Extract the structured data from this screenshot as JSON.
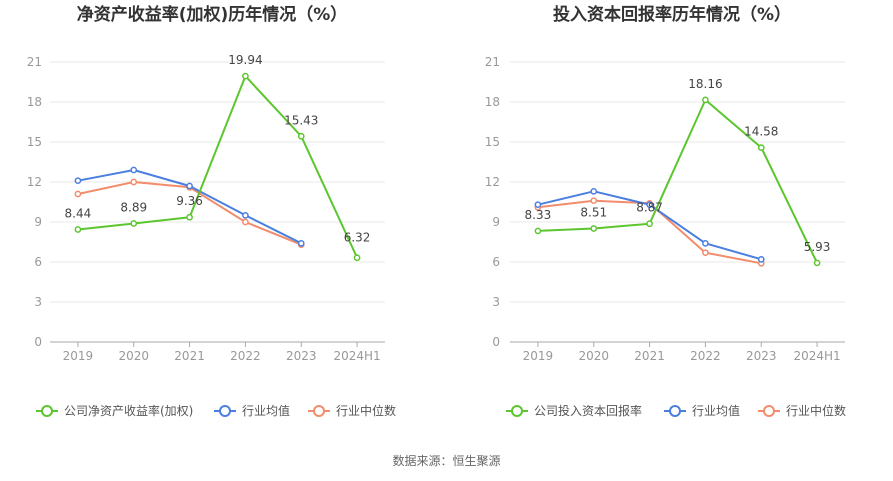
{
  "chart_data": [
    {
      "type": "line",
      "title": "净资产收益率(加权)历年情况（%）",
      "categories": [
        "2019",
        "2020",
        "2021",
        "2022",
        "2023",
        "2024H1"
      ],
      "yticks": [
        "0",
        "3",
        "6",
        "9",
        "12",
        "15",
        "18",
        "21"
      ],
      "ylim": [
        0,
        21
      ],
      "grid": true,
      "legend_position": "bottom",
      "series": [
        {
          "name": "公司净资产收益率(加权)",
          "color": "#5cc62f",
          "values": [
            8.44,
            8.89,
            9.36,
            19.94,
            15.43,
            6.32
          ],
          "labels": [
            "8.44",
            "8.89",
            "9.36",
            "19.94",
            "15.43",
            "6.32"
          ]
        },
        {
          "name": "行业均值",
          "color": "#4a7fe0",
          "values": [
            12.1,
            12.9,
            11.7,
            9.5,
            7.4,
            null
          ]
        },
        {
          "name": "行业中位数",
          "color": "#f28c6b",
          "values": [
            11.1,
            12.0,
            11.6,
            9.0,
            7.3,
            null
          ]
        }
      ]
    },
    {
      "type": "line",
      "title": "投入资本回报率历年情况（%）",
      "categories": [
        "2019",
        "2020",
        "2021",
        "2022",
        "2023",
        "2024H1"
      ],
      "yticks": [
        "0",
        "3",
        "6",
        "9",
        "12",
        "15",
        "18",
        "21"
      ],
      "ylim": [
        0,
        21
      ],
      "grid": true,
      "legend_position": "bottom",
      "series": [
        {
          "name": "公司投入资本回报率",
          "color": "#5cc62f",
          "values": [
            8.33,
            8.51,
            8.87,
            18.16,
            14.58,
            5.93
          ],
          "labels": [
            "8.33",
            "8.51",
            "8.87",
            "18.16",
            "14.58",
            "5.93"
          ]
        },
        {
          "name": "行业均值",
          "color": "#4a7fe0",
          "values": [
            10.3,
            11.3,
            10.3,
            7.4,
            6.2,
            null
          ]
        },
        {
          "name": "行业中位数",
          "color": "#f28c6b",
          "values": [
            10.1,
            10.6,
            10.4,
            6.7,
            5.9,
            null
          ]
        }
      ]
    }
  ],
  "footer": {
    "source": "数据来源：恒生聚源"
  }
}
